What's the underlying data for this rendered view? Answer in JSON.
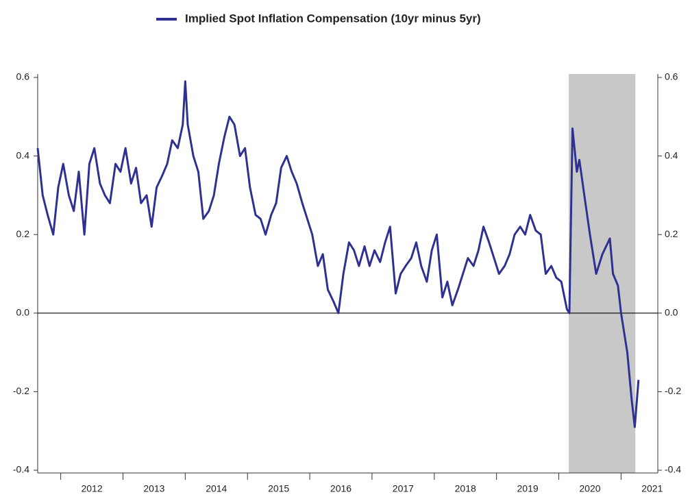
{
  "chart_data": {
    "type": "line",
    "x": [
      2011.63,
      2011.71,
      2011.79,
      2011.88,
      2011.96,
      2012.04,
      2012.13,
      2012.21,
      2012.29,
      2012.38,
      2012.46,
      2012.54,
      2012.63,
      2012.71,
      2012.79,
      2012.88,
      2012.96,
      2013.04,
      2013.13,
      2013.21,
      2013.29,
      2013.38,
      2013.46,
      2013.54,
      2013.63,
      2013.71,
      2013.79,
      2013.88,
      2013.96,
      2014.0,
      2014.04,
      2014.13,
      2014.21,
      2014.29,
      2014.38,
      2014.46,
      2014.54,
      2014.63,
      2014.71,
      2014.79,
      2014.88,
      2014.96,
      2015.04,
      2015.13,
      2015.21,
      2015.29,
      2015.38,
      2015.46,
      2015.54,
      2015.63,
      2015.71,
      2015.79,
      2015.88,
      2015.96,
      2016.04,
      2016.13,
      2016.21,
      2016.29,
      2016.38,
      2016.46,
      2016.54,
      2016.63,
      2016.71,
      2016.79,
      2016.88,
      2016.96,
      2017.04,
      2017.13,
      2017.21,
      2017.29,
      2017.38,
      2017.46,
      2017.54,
      2017.63,
      2017.71,
      2017.79,
      2017.88,
      2017.96,
      2018.04,
      2018.13,
      2018.21,
      2018.29,
      2018.38,
      2018.46,
      2018.54,
      2018.63,
      2018.71,
      2018.79,
      2018.88,
      2018.96,
      2019.04,
      2019.13,
      2019.21,
      2019.29,
      2019.38,
      2019.46,
      2019.54,
      2019.63,
      2019.71,
      2019.79,
      2019.88,
      2019.96,
      2020.04,
      2020.13,
      2020.17,
      2020.22,
      2020.29,
      2020.33,
      2020.41,
      2020.5,
      2020.6,
      2020.7,
      2020.82,
      2020.87,
      2020.95,
      2021.0,
      2021.1,
      2021.17,
      2021.22,
      2021.28
    ],
    "series": [
      {
        "name": "Implied Spot Inflation Compensation (10yr minus 5yr)",
        "color": "#2e3192",
        "values": [
          0.42,
          0.3,
          0.25,
          0.2,
          0.32,
          0.38,
          0.3,
          0.26,
          0.36,
          0.2,
          0.38,
          0.42,
          0.33,
          0.3,
          0.28,
          0.38,
          0.36,
          0.42,
          0.33,
          0.37,
          0.28,
          0.3,
          0.22,
          0.32,
          0.35,
          0.38,
          0.44,
          0.42,
          0.48,
          0.59,
          0.48,
          0.4,
          0.36,
          0.24,
          0.26,
          0.3,
          0.38,
          0.45,
          0.5,
          0.48,
          0.4,
          0.42,
          0.32,
          0.25,
          0.24,
          0.2,
          0.25,
          0.28,
          0.37,
          0.4,
          0.36,
          0.33,
          0.28,
          0.24,
          0.2,
          0.12,
          0.15,
          0.06,
          0.03,
          0.0,
          0.1,
          0.18,
          0.16,
          0.12,
          0.17,
          0.12,
          0.16,
          0.13,
          0.18,
          0.22,
          0.05,
          0.1,
          0.12,
          0.14,
          0.18,
          0.12,
          0.08,
          0.16,
          0.2,
          0.04,
          0.08,
          0.02,
          0.06,
          0.1,
          0.14,
          0.12,
          0.16,
          0.22,
          0.18,
          0.14,
          0.1,
          0.12,
          0.15,
          0.2,
          0.22,
          0.2,
          0.25,
          0.21,
          0.2,
          0.1,
          0.12,
          0.09,
          0.08,
          0.01,
          0.0,
          0.47,
          0.36,
          0.39,
          0.3,
          0.2,
          0.1,
          0.15,
          0.19,
          0.1,
          0.07,
          0.0,
          -0.1,
          -0.22,
          -0.29,
          -0.17
        ]
      }
    ],
    "shaded": [
      2020.16,
      2021.23
    ],
    "shade_color": "#c8c8c8",
    "xlim": [
      2011.63,
      2021.59
    ],
    "xticks": [
      2012,
      2013,
      2014,
      2015,
      2016,
      2017,
      2018,
      2019,
      2020,
      2021
    ],
    "ylim": [
      -0.4,
      0.6
    ],
    "yticks": [
      -0.4,
      -0.2,
      {
        "value": 0,
        "label": "0.0"
      },
      0.2,
      0.4,
      0.6
    ],
    "y2lim": [
      -0.4,
      0.6
    ],
    "y2ticks": [
      -0.4,
      -0.2,
      {
        "value": 0,
        "label": "0.0"
      },
      0.2,
      0.4,
      0.6
    ]
  }
}
